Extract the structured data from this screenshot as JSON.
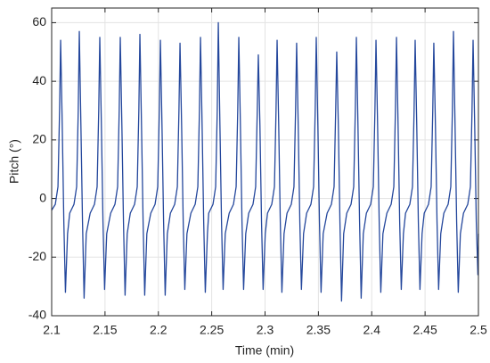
{
  "chart_data": {
    "type": "line",
    "xlabel": "Time (min)",
    "ylabel": "Pitch (°)",
    "xlim": [
      2.1,
      2.5
    ],
    "ylim": [
      -40,
      65
    ],
    "xticks": [
      2.1,
      2.15,
      2.2,
      2.25,
      2.3,
      2.35,
      2.4,
      2.45,
      2.5
    ],
    "yticks": [
      -40,
      -20,
      0,
      20,
      40,
      60
    ],
    "grid": true,
    "x": [
      2.1,
      2.1034,
      2.1059,
      2.1074,
      2.1084,
      2.1099,
      2.1114,
      2.1129,
      2.1149,
      2.1169,
      2.1209,
      2.1234,
      2.1249,
      2.1259,
      2.1274,
      2.1289,
      2.1304,
      2.1324,
      2.1361,
      2.1401,
      2.1426,
      2.1441,
      2.1451,
      2.1466,
      2.1481,
      2.1496,
      2.1516,
      2.1553,
      2.1593,
      2.1618,
      2.1633,
      2.1643,
      2.1658,
      2.1673,
      2.1688,
      2.1708,
      2.1737,
      2.1777,
      2.1802,
      2.1817,
      2.1827,
      2.1842,
      2.1857,
      2.1872,
      2.1892,
      2.1929,
      2.1969,
      2.1994,
      2.2009,
      2.2019,
      2.2034,
      2.2049,
      2.2064,
      2.2084,
      2.2113,
      2.2153,
      2.2178,
      2.2193,
      2.2203,
      2.2218,
      2.2233,
      2.2248,
      2.2268,
      2.2305,
      2.2345,
      2.237,
      2.2385,
      2.2395,
      2.241,
      2.2425,
      2.244,
      2.246,
      2.2472,
      2.2512,
      2.2537,
      2.2552,
      2.2562,
      2.2577,
      2.2592,
      2.2607,
      2.2627,
      2.2664,
      2.2704,
      2.2729,
      2.2744,
      2.2754,
      2.2769,
      2.2784,
      2.2799,
      2.2819,
      2.2847,
      2.2887,
      2.2912,
      2.2927,
      2.2937,
      2.2952,
      2.2967,
      2.2982,
      2.3002,
      2.3023,
      2.3063,
      2.3088,
      2.3103,
      2.3113,
      2.3128,
      2.3143,
      2.3158,
      2.3178,
      2.3206,
      2.3246,
      2.3271,
      2.3286,
      2.3296,
      2.3311,
      2.3326,
      2.3341,
      2.3361,
      2.339,
      2.343,
      2.3455,
      2.347,
      2.348,
      2.3495,
      2.351,
      2.3525,
      2.3545,
      2.3582,
      2.3622,
      2.3647,
      2.3662,
      2.3672,
      2.3687,
      2.3702,
      2.3717,
      2.3737,
      2.3766,
      2.3806,
      2.3831,
      2.3846,
      2.3856,
      2.3871,
      2.3886,
      2.3901,
      2.3921,
      2.395,
      2.399,
      2.4015,
      2.403,
      2.404,
      2.4055,
      2.407,
      2.4085,
      2.4105,
      2.4142,
      2.4182,
      2.4207,
      2.4222,
      2.4232,
      2.4247,
      2.4262,
      2.4277,
      2.4297,
      2.4317,
      2.4357,
      2.4382,
      2.4397,
      2.4407,
      2.4422,
      2.4437,
      2.4452,
      2.4472,
      2.4492,
      2.4532,
      2.4557,
      2.4572,
      2.4582,
      2.4597,
      2.4612,
      2.4627,
      2.4647,
      2.4676,
      2.4716,
      2.4741,
      2.4756,
      2.4766,
      2.4781,
      2.4796,
      2.4811,
      2.4831,
      2.486,
      2.49,
      2.4925,
      2.494,
      2.495,
      2.4965,
      2.498,
      2.4995,
      2.5
    ],
    "series": [
      {
        "color": "#24479c",
        "values": [
          -4,
          -2,
          4,
          30,
          54,
          25,
          -8,
          -32,
          -12,
          -5,
          -2,
          4,
          30,
          57,
          25,
          -8,
          -34,
          -12,
          -5,
          -2,
          4,
          30,
          55,
          25,
          -8,
          -31,
          -12,
          -5,
          -2,
          4,
          30,
          55,
          25,
          -8,
          -33,
          -12,
          -5,
          -2,
          4,
          30,
          56,
          25,
          -8,
          -33,
          -12,
          -5,
          -2,
          4,
          30,
          54,
          25,
          -8,
          -33,
          -12,
          -5,
          -2,
          4,
          30,
          53,
          25,
          -8,
          -31,
          -12,
          -5,
          -2,
          4,
          30,
          55,
          25,
          -8,
          -32,
          -12,
          -5,
          -2,
          4,
          30,
          60,
          25,
          -8,
          -31,
          -12,
          -5,
          -2,
          4,
          30,
          55,
          25,
          -8,
          -31,
          -12,
          -5,
          -2,
          4,
          30,
          49,
          25,
          -8,
          -31,
          -12,
          -5,
          -2,
          4,
          30,
          54,
          25,
          -8,
          -32,
          -12,
          -5,
          -2,
          4,
          30,
          53,
          25,
          -8,
          -31,
          -12,
          -5,
          -2,
          4,
          30,
          55,
          25,
          -8,
          -32,
          -12,
          -5,
          -2,
          4,
          30,
          50,
          25,
          -8,
          -35,
          -12,
          -5,
          -2,
          4,
          30,
          55,
          25,
          -8,
          -34,
          -12,
          -5,
          -2,
          4,
          30,
          54,
          25,
          -8,
          -32,
          -12,
          -5,
          -2,
          4,
          30,
          55,
          25,
          -8,
          -31,
          -12,
          -5,
          -2,
          4,
          30,
          54,
          25,
          -8,
          -31,
          -12,
          -5,
          -2,
          4,
          30,
          53,
          25,
          -8,
          -31,
          -12,
          -5,
          -2,
          4,
          30,
          57,
          25,
          -8,
          -32,
          -12,
          -5,
          -2,
          4,
          30,
          54,
          25,
          -8,
          -26,
          -12
        ]
      }
    ]
  }
}
